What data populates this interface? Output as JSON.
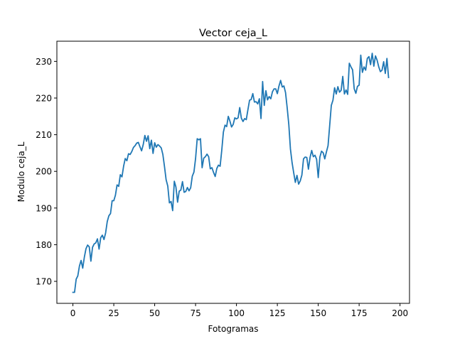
{
  "chart_data": {
    "type": "line",
    "title": "Vector ceja_L",
    "xlabel": "Fotogramas",
    "ylabel": "Modulo ceja_L",
    "xlim": [
      -9.8,
      205.8
    ],
    "ylim": [
      164,
      235.5
    ],
    "xticks": [
      0,
      25,
      50,
      75,
      100,
      125,
      150,
      175,
      200
    ],
    "yticks": [
      170,
      180,
      190,
      200,
      210,
      220,
      230
    ],
    "grid": false,
    "legend": "none",
    "line_color": "#1f77b4",
    "series": [
      {
        "values": [
          167.0,
          167.0,
          170.6,
          171.5,
          174.2,
          175.7,
          173.6,
          176.6,
          178.9,
          179.9,
          179.4,
          175.5,
          179.3,
          180.2,
          180.5,
          181.6,
          178.8,
          181.9,
          182.6,
          181.4,
          183.2,
          186.3,
          187.9,
          188.5,
          192.0,
          192.0,
          193.5,
          196.3,
          195.9,
          199.1,
          198.5,
          201.4,
          203.5,
          202.9,
          204.8,
          204.6,
          205.4,
          206.5,
          207.0,
          207.7,
          207.9,
          206.7,
          205.6,
          207.3,
          209.8,
          208.2,
          209.7,
          206.2,
          208.5,
          204.9,
          207.8,
          206.6,
          207.3,
          206.9,
          206.4,
          204.6,
          201.3,
          197.7,
          196.0,
          191.4,
          191.8,
          189.3,
          197.3,
          195.7,
          191.6,
          194.6,
          194.9,
          197.2,
          194.3,
          194.5,
          195.6,
          194.7,
          195.5,
          198.7,
          199.8,
          203.5,
          208.9,
          208.6,
          208.9,
          201.0,
          203.6,
          204.0,
          204.7,
          204.0,
          200.7,
          201.0,
          199.7,
          198.6,
          200.8,
          201.7,
          201.4,
          205.7,
          210.7,
          212.6,
          212.2,
          215.0,
          213.7,
          212.1,
          212.8,
          214.6,
          214.3,
          214.6,
          217.4,
          214.5,
          213.6,
          214.4,
          214.1,
          216.8,
          219.4,
          219.6,
          221.2,
          218.9,
          219.0,
          218.4,
          219.8,
          214.4,
          224.5,
          218.0,
          222.0,
          219.5,
          220.4,
          219.8,
          221.7,
          222.5,
          222.5,
          221.2,
          223.3,
          224.8,
          223.0,
          223.3,
          221.5,
          217.4,
          212.8,
          206.1,
          202.4,
          199.6,
          197.0,
          198.9,
          196.5,
          197.4,
          199.0,
          203.4,
          203.9,
          203.8,
          200.6,
          203.8,
          205.7,
          204.0,
          204.4,
          203.3,
          198.3,
          203.9,
          205.5,
          205.1,
          203.4,
          205.3,
          207.0,
          212.5,
          218.0,
          219.4,
          222.8,
          221.1,
          223.1,
          221.6,
          222.1,
          225.9,
          221.1,
          222.2,
          221.0,
          229.5,
          228.5,
          227.7,
          222.5,
          221.3,
          223.2,
          223.5,
          231.7,
          227.0,
          228.5,
          227.6,
          230.8,
          231.3,
          229.1,
          232.2,
          228.7,
          231.5,
          230.3,
          228.5,
          227.2,
          227.6,
          229.9,
          226.7,
          230.8,
          225.6
        ]
      }
    ]
  }
}
